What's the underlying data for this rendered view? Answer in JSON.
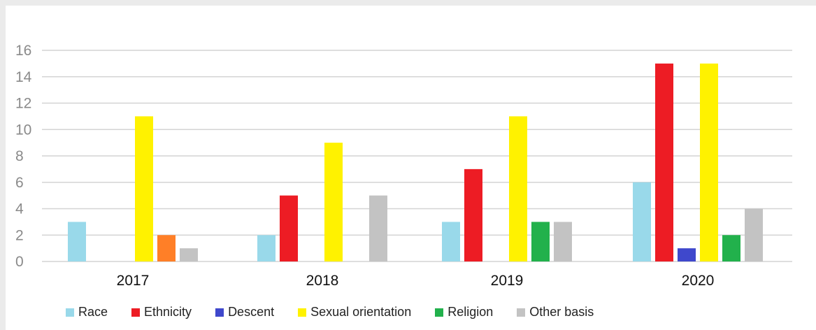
{
  "chart_data": {
    "type": "bar",
    "categories": [
      "2017",
      "2018",
      "2019",
      "2020"
    ],
    "series": [
      {
        "name": "Race",
        "color": "#99d9ea",
        "values": [
          3,
          2,
          3,
          6
        ]
      },
      {
        "name": "Ethnicity",
        "color": "#ed1c24",
        "values": [
          0,
          5,
          7,
          15
        ]
      },
      {
        "name": "Descent",
        "color": "#3f48cc",
        "values": [
          0,
          0,
          0,
          1
        ]
      },
      {
        "name": "Sexual orientation",
        "color": "#fff200",
        "values": [
          11,
          9,
          11,
          15
        ]
      },
      {
        "name": "Religion",
        "color": "#22b14c",
        "values": [
          2,
          0,
          3,
          2
        ]
      },
      {
        "name": "Other basis",
        "color": "#c3c3c3",
        "values": [
          1,
          5,
          3,
          4
        ]
      }
    ],
    "yticks": [
      "0",
      "2",
      "4",
      "6",
      "8",
      "10",
      "12",
      "14",
      "16"
    ],
    "ylim": [
      0,
      16
    ],
    "grid": true,
    "legend_position": "bottom",
    "special_colors": [
      {
        "category": "2017",
        "series": "Religion",
        "color": "#ff7f27"
      }
    ]
  }
}
